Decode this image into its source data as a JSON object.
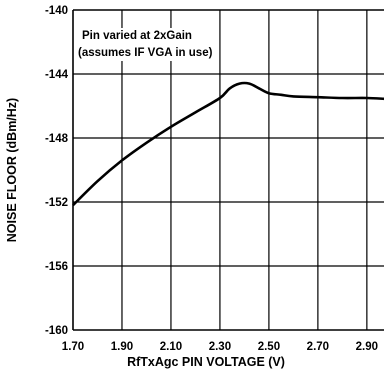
{
  "chart_data": {
    "type": "line",
    "title": "",
    "xlabel": "RfTxAgc PIN VOLTAGE (V)",
    "ylabel": "NOISE FLOOR (dBm/Hz)",
    "xlim": [
      1.7,
      2.97
    ],
    "ylim": [
      -160,
      -140
    ],
    "x_ticks": [
      "1.70",
      "1.90",
      "2.10",
      "2.30",
      "2.50",
      "2.70",
      "2.90"
    ],
    "y_ticks": [
      "-140",
      "-144",
      "-148",
      "-152",
      "-156",
      "-160"
    ],
    "grid": true,
    "annotations": [
      "Pin varied at 2xGain",
      "(assumes IF VGA in use)"
    ],
    "series": [
      {
        "x": [
          1.7,
          1.8,
          1.9,
          2.0,
          2.1,
          2.2,
          2.3,
          2.34,
          2.38,
          2.42,
          2.46,
          2.5,
          2.55,
          2.6,
          2.7,
          2.8,
          2.9,
          2.97
        ],
        "y": [
          -152.2,
          -150.7,
          -149.4,
          -148.3,
          -147.3,
          -146.4,
          -145.5,
          -144.9,
          -144.6,
          -144.6,
          -144.9,
          -145.2,
          -145.3,
          -145.4,
          -145.45,
          -145.5,
          -145.5,
          -145.55
        ]
      }
    ]
  }
}
